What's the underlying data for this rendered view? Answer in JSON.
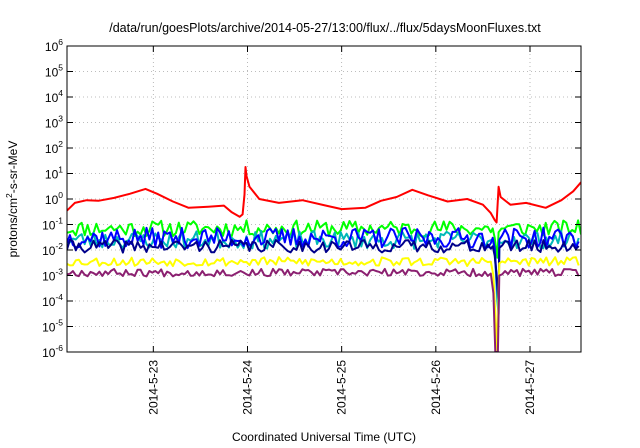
{
  "chart_data": {
    "type": "line",
    "title": "/data/run/goesPlots/archive/2014-05-27/13:00/flux/../flux/5daysMoonFluxes.txt",
    "xlabel": "Coordinated Universal Time (UTC)",
    "ylabel": {
      "base": "protons/cm",
      "sup": "2",
      "rest": "-s-sr-MeV"
    },
    "y_scale": "log",
    "ylim": [
      1e-06,
      1000000.0
    ],
    "xlim": [
      "2014-05-22T02:00",
      "2014-05-27T13:00"
    ],
    "grid": true,
    "x_ticks": [
      {
        "label": "2014-5-23",
        "t": "2014-05-23T00:00"
      },
      {
        "label": "2014-5-24",
        "t": "2014-05-24T00:00"
      },
      {
        "label": "2014-5-25",
        "t": "2014-05-25T00:00"
      },
      {
        "label": "2014-5-26",
        "t": "2014-05-26T00:00"
      },
      {
        "label": "2014-5-27",
        "t": "2014-05-27T00:00"
      }
    ],
    "y_ticks": [
      {
        "base": "10",
        "exp": "-6",
        "value": 1e-06
      },
      {
        "base": "10",
        "exp": "-5",
        "value": 1e-05
      },
      {
        "base": "10",
        "exp": "-4",
        "value": 0.0001
      },
      {
        "base": "10",
        "exp": "-3",
        "value": 0.001
      },
      {
        "base": "10",
        "exp": "-2",
        "value": 0.01
      },
      {
        "base": "10",
        "exp": "-1",
        "value": 0.1
      },
      {
        "base": "10",
        "exp": "0",
        "value": 1
      },
      {
        "base": "10",
        "exp": "1",
        "value": 10
      },
      {
        "base": "10",
        "exp": "2",
        "value": 100
      },
      {
        "base": "10",
        "exp": "3",
        "value": 1000
      },
      {
        "base": "10",
        "exp": "4",
        "value": 10000
      },
      {
        "base": "10",
        "exp": "5",
        "value": 100000
      },
      {
        "base": "10",
        "exp": "6",
        "value": 1000000
      }
    ],
    "series": [
      {
        "color": "#ff0000",
        "width": 2,
        "points": [
          [
            "2014-05-22T02:00",
            0.35
          ],
          [
            "2014-05-22T04:00",
            0.7
          ],
          [
            "2014-05-22T07:00",
            0.9
          ],
          [
            "2014-05-22T10:00",
            0.85
          ],
          [
            "2014-05-22T14:00",
            1.1
          ],
          [
            "2014-05-22T18:00",
            1.6
          ],
          [
            "2014-05-22T22:00",
            2.5
          ],
          [
            "2014-05-23T01:00",
            1.6
          ],
          [
            "2014-05-23T05:00",
            0.8
          ],
          [
            "2014-05-23T09:00",
            0.45
          ],
          [
            "2014-05-23T14:00",
            0.5
          ],
          [
            "2014-05-23T18:00",
            0.55
          ],
          [
            "2014-05-23T20:00",
            0.3
          ],
          [
            "2014-05-23T22:00",
            0.2
          ],
          [
            "2014-05-23T22:45",
            0.25
          ],
          [
            "2014-05-23T23:15",
            1.5
          ],
          [
            "2014-05-23T23:30",
            18
          ],
          [
            "2014-05-23T23:45",
            8
          ],
          [
            "2014-05-24T00:30",
            3
          ],
          [
            "2014-05-24T03:00",
            1.0
          ],
          [
            "2014-05-24T08:00",
            0.7
          ],
          [
            "2014-05-24T14:00",
            0.9
          ],
          [
            "2014-05-24T20:00",
            0.55
          ],
          [
            "2014-05-25T00:00",
            0.4
          ],
          [
            "2014-05-25T06:00",
            0.45
          ],
          [
            "2014-05-25T10:00",
            0.85
          ],
          [
            "2014-05-25T14:00",
            1.2
          ],
          [
            "2014-05-25T18:00",
            2.3
          ],
          [
            "2014-05-25T22:00",
            1.4
          ],
          [
            "2014-05-26T03:00",
            0.8
          ],
          [
            "2014-05-26T08:00",
            1.0
          ],
          [
            "2014-05-26T12:00",
            0.6
          ],
          [
            "2014-05-26T14:00",
            0.28
          ],
          [
            "2014-05-26T15:00",
            0.15
          ],
          [
            "2014-05-26T15:30",
            0.12
          ],
          [
            "2014-05-26T16:00",
            3
          ],
          [
            "2014-05-26T16:30",
            1.2
          ],
          [
            "2014-05-26T19:00",
            0.6
          ],
          [
            "2014-05-26T23:00",
            0.7
          ],
          [
            "2014-05-27T04:00",
            0.45
          ],
          [
            "2014-05-27T08:00",
            0.9
          ],
          [
            "2014-05-27T11:00",
            2.0
          ],
          [
            "2014-05-27T13:00",
            4.5
          ]
        ]
      },
      {
        "color": "#00ff00",
        "width": 2,
        "base": 0.07,
        "jitter": 0.32,
        "seed": 11,
        "dip": [
          [
            "2014-05-26T14:30",
            0.07
          ],
          [
            "2014-05-26T15:00",
            0.03
          ],
          [
            "2014-05-26T15:40",
            0.005
          ],
          [
            "2014-05-26T16:00",
            0.05
          ]
        ]
      },
      {
        "color": "#00b8b8",
        "width": 2,
        "base": 0.025,
        "jitter": 0.35,
        "seed": 23,
        "dip": [
          [
            "2014-05-26T14:30",
            0.025
          ],
          [
            "2014-05-26T15:00",
            0.01
          ],
          [
            "2014-05-26T15:40",
            0.0001
          ],
          [
            "2014-05-26T16:00",
            3e-05
          ],
          [
            "2014-05-26T16:10",
            0.02
          ]
        ]
      },
      {
        "color": "#0000ff",
        "width": 2,
        "base": 0.03,
        "jitter": 0.4,
        "seed": 37,
        "dip": [
          [
            "2014-05-26T14:30",
            0.03
          ],
          [
            "2014-05-26T15:00",
            0.012
          ],
          [
            "2014-05-26T15:40",
            0.0003
          ],
          [
            "2014-05-26T16:00",
            0.0001
          ],
          [
            "2014-05-26T16:10",
            0.025
          ]
        ]
      },
      {
        "color": "#00008b",
        "width": 2,
        "base": 0.014,
        "jitter": 0.25,
        "seed": 41,
        "dip": [
          [
            "2014-05-26T14:30",
            0.014
          ],
          [
            "2014-05-26T15:00",
            0.006
          ],
          [
            "2014-05-26T15:40",
            0.0005
          ],
          [
            "2014-05-26T16:00",
            0.0001
          ],
          [
            "2014-05-26T16:10",
            0.012
          ]
        ]
      },
      {
        "color": "#ffff00",
        "width": 2,
        "base": 0.0035,
        "jitter": 0.18,
        "seed": 53,
        "dip": [
          [
            "2014-05-26T14:00",
            0.0035
          ],
          [
            "2014-05-26T14:40",
            0.001
          ],
          [
            "2014-05-26T15:20",
            1e-05
          ],
          [
            "2014-05-26T15:40",
            1e-06
          ],
          [
            "2014-05-26T16:10",
            0.003
          ]
        ]
      },
      {
        "color": "#8b2070",
        "width": 2,
        "base": 0.0013,
        "jitter": 0.15,
        "seed": 67,
        "dip": [
          [
            "2014-05-26T14:00",
            0.0012
          ],
          [
            "2014-05-26T14:40",
            0.0002
          ],
          [
            "2014-05-26T15:10",
            1e-06
          ],
          [
            "2014-05-26T15:50",
            1e-06
          ],
          [
            "2014-05-26T16:10",
            0.001
          ]
        ]
      }
    ]
  }
}
